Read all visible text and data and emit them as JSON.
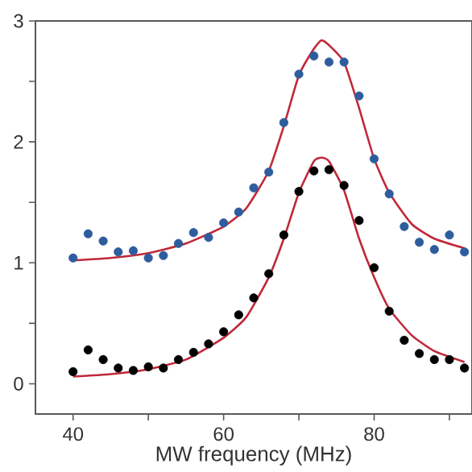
{
  "chart_data": {
    "type": "scatter",
    "xlabel": "MW frequency (MHz)",
    "x": [
      40,
      42,
      44,
      46,
      48,
      50,
      52,
      54,
      56,
      58,
      60,
      62,
      64,
      66,
      68,
      70,
      72,
      74,
      76,
      78,
      80,
      82,
      84,
      86,
      88,
      90,
      92
    ],
    "series": [
      {
        "marker": "circle",
        "color": "#2e5d9e",
        "values": [
          1.04,
          1.24,
          1.18,
          1.09,
          1.1,
          1.04,
          1.06,
          1.16,
          1.25,
          1.21,
          1.33,
          1.42,
          1.62,
          1.75,
          2.16,
          2.56,
          2.71,
          2.66,
          2.66,
          2.38,
          1.86,
          1.57,
          1.3,
          1.17,
          1.11,
          1.23,
          1.09
        ]
      },
      {
        "marker": "circle",
        "color": "#000000",
        "values": [
          0.1,
          0.28,
          0.2,
          0.13,
          0.11,
          0.14,
          0.13,
          0.2,
          0.26,
          0.33,
          0.43,
          0.57,
          0.71,
          0.91,
          1.23,
          1.59,
          1.76,
          1.77,
          1.64,
          1.35,
          0.96,
          0.6,
          0.36,
          0.25,
          0.2,
          0.2,
          0.13
        ]
      },
      {
        "type": "line",
        "marker": "none",
        "color": "#c0283a",
        "x": [
          40,
          45,
          50,
          55,
          60,
          63,
          66,
          68,
          70,
          72,
          73,
          74,
          76,
          78,
          80,
          82,
          85,
          88,
          92
        ],
        "values": [
          1.02,
          1.04,
          1.08,
          1.16,
          1.3,
          1.45,
          1.76,
          2.13,
          2.55,
          2.77,
          2.84,
          2.8,
          2.66,
          2.28,
          1.86,
          1.58,
          1.32,
          1.2,
          1.12
        ]
      },
      {
        "type": "line",
        "marker": "none",
        "color": "#c0283a",
        "x": [
          40,
          45,
          50,
          55,
          60,
          63,
          66,
          68,
          70,
          72,
          73,
          74,
          76,
          78,
          80,
          82,
          85,
          88,
          92
        ],
        "values": [
          0.06,
          0.08,
          0.12,
          0.2,
          0.38,
          0.55,
          0.88,
          1.2,
          1.58,
          1.84,
          1.87,
          1.84,
          1.6,
          1.2,
          0.88,
          0.62,
          0.4,
          0.27,
          0.18
        ]
      }
    ],
    "xlim": [
      35,
      93
    ],
    "ylim": [
      -0.25,
      3
    ],
    "xticks": [
      40,
      {
        "value": 50,
        "label": null
      },
      60,
      {
        "value": 70,
        "label": null
      },
      80,
      {
        "value": 90,
        "label": null
      }
    ],
    "yticks": [
      0,
      {
        "value": 0.5,
        "label": null
      },
      1,
      {
        "value": 1.5,
        "label": null
      },
      2,
      {
        "value": 2.5,
        "label": null
      },
      3
    ]
  }
}
